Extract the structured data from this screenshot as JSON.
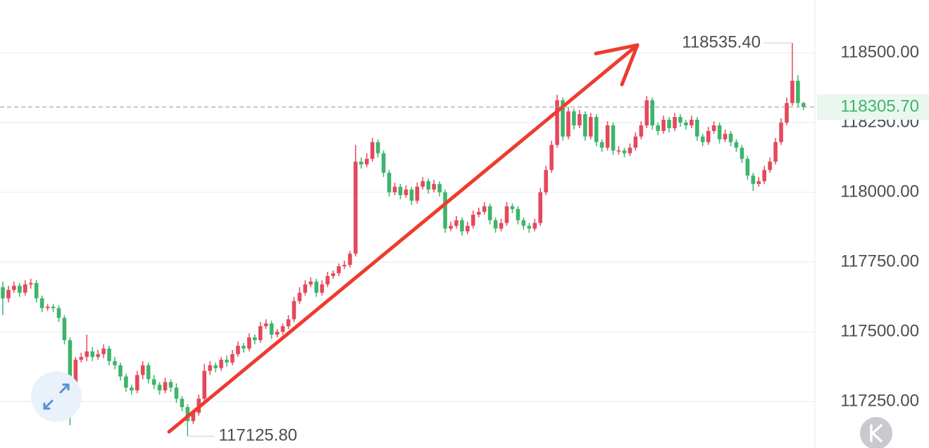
{
  "chart_data": {
    "type": "candlestick",
    "open": [
      117660,
      117620,
      117650,
      117665,
      117640,
      117670,
      117675,
      117620,
      117585,
      117590,
      117585,
      117550,
      117470,
      117320,
      117400,
      117410,
      117430,
      117410,
      117420,
      117440,
      117395,
      117380,
      117340,
      117300,
      117290,
      117345,
      117380,
      117330,
      117310,
      117290,
      117320,
      117300,
      117260,
      117230,
      117180,
      117210,
      117260,
      117360,
      117380,
      117370,
      117400,
      117390,
      117420,
      117450,
      117440,
      117480,
      117470,
      117520,
      117530,
      117490,
      117500,
      117520,
      117545,
      117610,
      117640,
      117670,
      117680,
      117640,
      117670,
      117700,
      117710,
      117735,
      117740,
      117780,
      118110,
      118100,
      118120,
      118180,
      118140,
      118070,
      118000,
      118020,
      117990,
      118010,
      117970,
      118020,
      118040,
      118010,
      118030,
      118000,
      117870,
      117880,
      117900,
      117860,
      117880,
      117920,
      117930,
      117950,
      117900,
      117870,
      117890,
      117950,
      117940,
      117900,
      117880,
      117870,
      117890,
      118000,
      118080,
      118170,
      118330,
      118200,
      118290,
      118240,
      118280,
      118200,
      118270,
      118180,
      118160,
      118240,
      118150,
      118150,
      118140,
      118160,
      118200,
      118240,
      118330,
      118240,
      118220,
      118260,
      118230,
      118270,
      118250,
      118240,
      118260,
      118200,
      118180,
      118220,
      118240,
      118190,
      118210,
      118180,
      118160,
      118120,
      118060,
      118030,
      118040,
      118080,
      118110,
      118180,
      118250,
      118320,
      118400,
      118320
    ],
    "high": [
      117680,
      117665,
      117680,
      117675,
      117685,
      117690,
      117685,
      117630,
      117600,
      117600,
      117595,
      117560,
      117480,
      117410,
      117425,
      117490,
      117445,
      117435,
      117455,
      117450,
      117410,
      117390,
      117350,
      117310,
      117360,
      117395,
      117390,
      117345,
      117320,
      117335,
      117330,
      117315,
      117270,
      117240,
      117220,
      117275,
      117385,
      117395,
      117390,
      117410,
      117415,
      117435,
      117465,
      117460,
      117495,
      117490,
      117535,
      117545,
      117540,
      117510,
      117530,
      117560,
      117625,
      117660,
      117685,
      117695,
      117690,
      117685,
      117715,
      117720,
      117745,
      117755,
      117790,
      118170,
      118125,
      118140,
      118195,
      118190,
      118150,
      118080,
      118035,
      118030,
      118025,
      118020,
      118035,
      118055,
      118050,
      118045,
      118040,
      118010,
      117895,
      117915,
      117910,
      117895,
      117935,
      117945,
      117965,
      117960,
      117910,
      117905,
      117965,
      117960,
      117950,
      117910,
      117890,
      117905,
      118015,
      118095,
      118185,
      118350,
      118340,
      118305,
      118300,
      118295,
      118290,
      118285,
      118280,
      118190,
      118255,
      118250,
      118165,
      118160,
      118175,
      118215,
      118255,
      118345,
      118340,
      118250,
      118275,
      118270,
      118285,
      118280,
      118260,
      118275,
      118270,
      118210,
      118235,
      118255,
      118250,
      118225,
      118220,
      118190,
      118170,
      118130,
      118070,
      118055,
      118095,
      118125,
      118195,
      118265,
      118340,
      118535.4,
      118420,
      118325
    ],
    "low": [
      117560,
      117605,
      117640,
      117625,
      117630,
      117655,
      117605,
      117570,
      117575,
      117570,
      117535,
      117455,
      117165,
      117305,
      117390,
      117395,
      117395,
      117400,
      117405,
      117380,
      117365,
      117325,
      117285,
      117275,
      117280,
      117330,
      117315,
      117295,
      117275,
      117280,
      117285,
      117245,
      117215,
      117125.8,
      117170,
      117200,
      117245,
      117345,
      117355,
      117360,
      117375,
      117380,
      117410,
      117425,
      117430,
      117455,
      117460,
      117510,
      117475,
      117480,
      117490,
      117510,
      117535,
      117600,
      117630,
      117660,
      117625,
      117630,
      117660,
      117690,
      117700,
      117725,
      117730,
      117770,
      118085,
      118090,
      118110,
      118125,
      118055,
      117985,
      117990,
      117975,
      117980,
      117955,
      117960,
      118010,
      117995,
      118000,
      117985,
      117855,
      117860,
      117870,
      117845,
      117850,
      117870,
      117910,
      117920,
      117885,
      117855,
      117860,
      117880,
      117925,
      117885,
      117865,
      117855,
      117860,
      117880,
      117990,
      118070,
      118160,
      118185,
      118190,
      118225,
      118230,
      118185,
      118190,
      118165,
      118145,
      118150,
      118135,
      118135,
      118125,
      118130,
      118150,
      118190,
      118230,
      118225,
      118205,
      118210,
      118215,
      118220,
      118235,
      118225,
      118230,
      118185,
      118165,
      118170,
      118210,
      118175,
      118180,
      118165,
      118145,
      118105,
      118045,
      118005,
      118020,
      118030,
      118070,
      118100,
      118170,
      118240,
      118310,
      118305,
      118295
    ],
    "close": [
      117620,
      117650,
      117665,
      117640,
      117670,
      117675,
      117620,
      117585,
      117590,
      117585,
      117550,
      117470,
      117320,
      117400,
      117410,
      117430,
      117410,
      117420,
      117440,
      117395,
      117380,
      117340,
      117300,
      117290,
      117345,
      117380,
      117330,
      117310,
      117290,
      117320,
      117300,
      117260,
      117230,
      117180,
      117210,
      117260,
      117360,
      117380,
      117370,
      117400,
      117390,
      117420,
      117450,
      117440,
      117480,
      117470,
      117520,
      117530,
      117490,
      117500,
      117520,
      117545,
      117610,
      117640,
      117670,
      117680,
      117640,
      117670,
      117700,
      117710,
      117735,
      117740,
      117780,
      118110,
      118100,
      118120,
      118180,
      118140,
      118070,
      118000,
      118020,
      117990,
      118010,
      117970,
      118020,
      118040,
      118010,
      118030,
      118000,
      117870,
      117880,
      117900,
      117860,
      117880,
      117920,
      117930,
      117950,
      117900,
      117870,
      117890,
      117950,
      117940,
      117900,
      117880,
      117870,
      117890,
      118000,
      118080,
      118170,
      118330,
      118200,
      118290,
      118240,
      118280,
      118200,
      118270,
      118180,
      118160,
      118240,
      118150,
      118150,
      118140,
      118160,
      118200,
      118240,
      118330,
      118240,
      118220,
      118260,
      118230,
      118270,
      118250,
      118240,
      118260,
      118200,
      118180,
      118220,
      118240,
      118190,
      118210,
      118180,
      118160,
      118120,
      118060,
      118030,
      118040,
      118080,
      118110,
      118180,
      118250,
      118320,
      118400,
      118320,
      118305.7
    ],
    "up_color": "#e5485c",
    "down_color": "#3db56a",
    "ylim": [
      117083.5,
      118689.4
    ],
    "yticks": [
      {
        "value": 117250,
        "label": "117250.00"
      },
      {
        "value": 117500,
        "label": "117500.00"
      },
      {
        "value": 117750,
        "label": "117750.00"
      },
      {
        "value": 118000,
        "label": "118000.00"
      },
      {
        "value": 118250,
        "label": "118250.00"
      },
      {
        "value": 118500,
        "label": "118500.00"
      }
    ],
    "grid": true,
    "extremes": [
      {
        "value": 118535.4,
        "label": "118535.40"
      },
      {
        "value": 117125.8,
        "label": "117125.80"
      }
    ],
    "last_price": {
      "value": 118305.7,
      "label": "118305.70",
      "color": "#3db56a"
    }
  }
}
